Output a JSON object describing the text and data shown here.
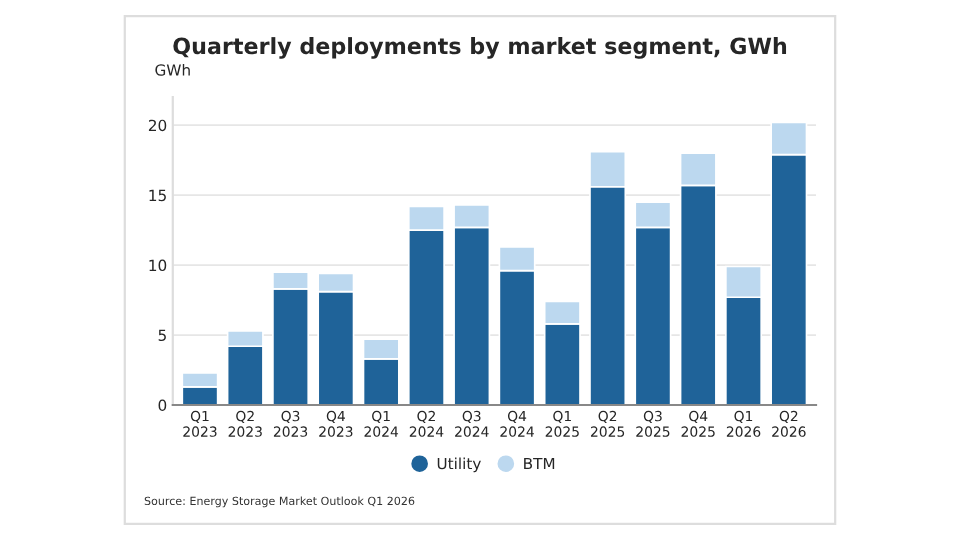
{
  "chart_data": {
    "type": "bar",
    "title": "Quarterly deployments by market segment, GWh",
    "ylabel": "GWh",
    "categories": [
      "Q1\n2023",
      "Q2\n2023",
      "Q3\n2023",
      "Q4\n2023",
      "Q1\n2024",
      "Q2\n2024",
      "Q3\n2024",
      "Q4\n2024",
      "Q1\n2025",
      "Q2\n2025",
      "Q3\n2025",
      "Q4\n2025",
      "Q1\n2026",
      "Q2\n2026"
    ],
    "series": [
      {
        "name": "Utility",
        "color": "#1f6399",
        "values": [
          1.3,
          4.2,
          8.3,
          8.1,
          3.3,
          12.5,
          12.7,
          9.6,
          5.8,
          15.6,
          12.7,
          15.7,
          7.7,
          17.9
        ]
      },
      {
        "name": "BTM",
        "color": "#bcd8ef",
        "values": [
          1.0,
          1.1,
          1.2,
          1.3,
          1.4,
          1.7,
          1.6,
          1.7,
          1.6,
          2.5,
          1.8,
          2.3,
          2.2,
          2.3
        ]
      }
    ],
    "stacked": true,
    "ylim": [
      0,
      22
    ],
    "yticks": [
      0,
      5,
      10,
      15,
      20
    ],
    "grid": "y",
    "legend": "bottom",
    "annotations": [
      "Source: Energy Storage Market Outlook Q1 2026"
    ]
  }
}
